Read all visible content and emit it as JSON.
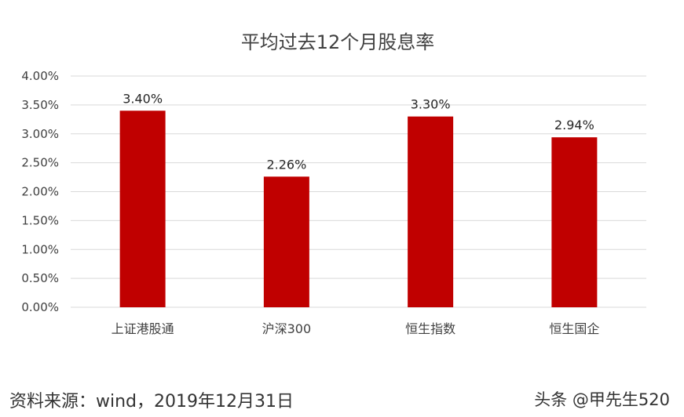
{
  "chart_data": {
    "type": "bar",
    "title": "平均过去12个月股息率",
    "categories": [
      "上证港股通",
      "沪深300",
      "恒生指数",
      "恒生国企"
    ],
    "values": [
      3.4,
      2.26,
      3.3,
      2.94
    ],
    "data_labels": [
      "3.40%",
      "2.26%",
      "3.30%",
      "2.94%"
    ],
    "ylim": [
      0,
      4
    ],
    "yticks": [
      "0.00%",
      "0.50%",
      "1.00%",
      "1.50%",
      "2.00%",
      "2.50%",
      "3.00%",
      "3.50%",
      "4.00%"
    ],
    "xlabel": "",
    "ylabel": "",
    "grid": true,
    "bar_color": "#c00000"
  },
  "footer": {
    "source": "资料来源：wind，2019年12月31日",
    "watermark": "头条 @甲先生520"
  }
}
